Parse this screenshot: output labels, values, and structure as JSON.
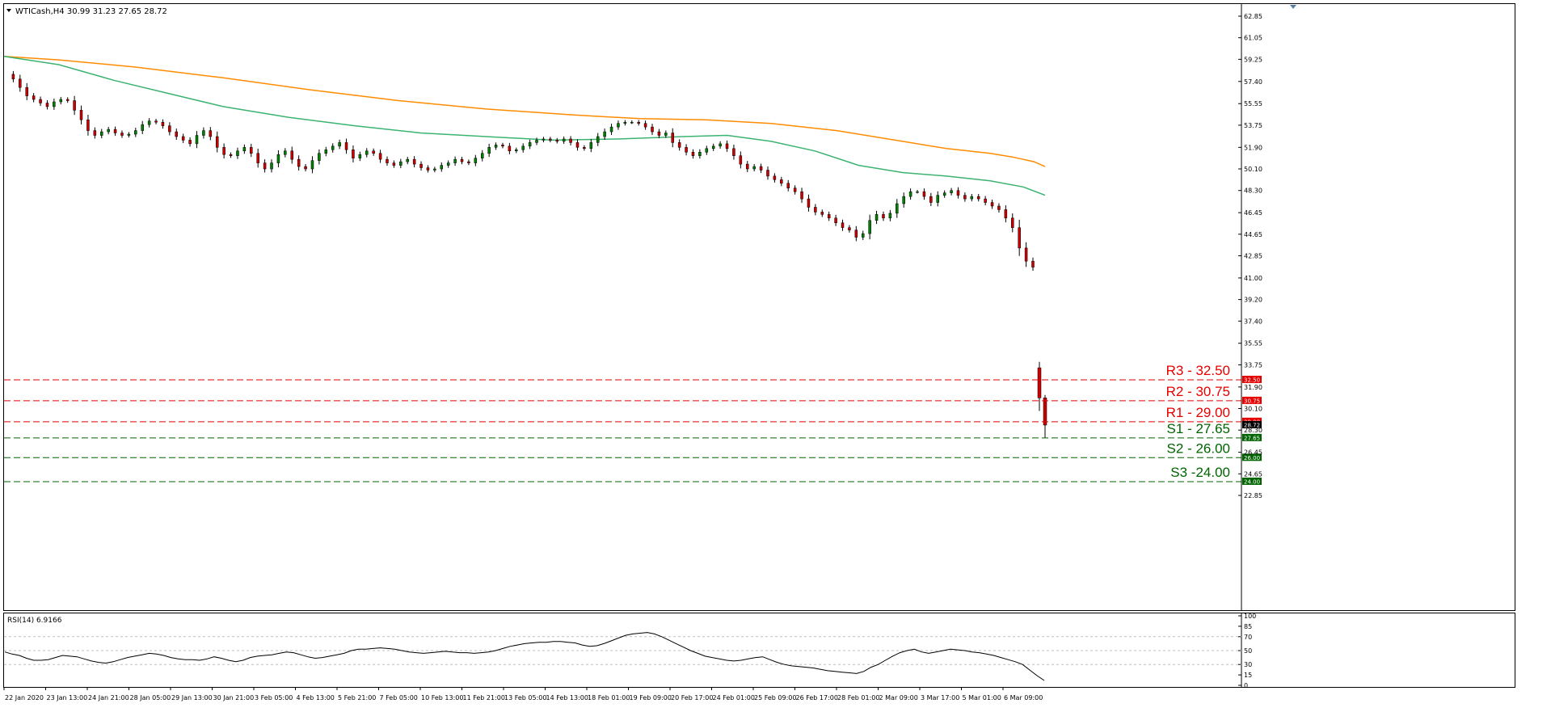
{
  "window": {
    "symbol_header": "WTICash,H4  30.99 31.23 27.65 28.72",
    "menu_arrow_icon": "triangle-down-icon",
    "scroll_marker_icon": "triangle-down-icon"
  },
  "colors": {
    "background": "#ffffff",
    "frame": "#000000",
    "bull_candle": "#008000",
    "bear_candle": "#cc0000",
    "wick": "#000000",
    "ma_slow": "#ff8c00",
    "ma_fast": "#3cb371",
    "resistance": "#e60000",
    "support": "#006400",
    "rsi_line": "#000000",
    "rsi_levels": "#bfbfbf"
  },
  "chart_data": [
    {
      "type": "candlestick",
      "title": "WTICash,H4  30.99 31.23 27.65 28.72",
      "last_bar": {
        "open": 30.99,
        "high": 31.23,
        "low": 27.65,
        "close": 28.72
      },
      "ylim": [
        22.85,
        63.75
      ],
      "y_ticks": [
        "62.85",
        "61.05",
        "59.25",
        "57.40",
        "55.55",
        "53.75",
        "51.90",
        "50.10",
        "48.30",
        "46.45",
        "44.65",
        "42.85",
        "41.00",
        "39.20",
        "37.40",
        "35.55",
        "33.75",
        "31.90",
        "30.10",
        "28.30",
        "26.45",
        "24.65",
        "22.85"
      ],
      "x_ticks": [
        "22 Jan 2020",
        "23 Jan 13:00",
        "24 Jan 21:00",
        "28 Jan 05:00",
        "29 Jan 13:00",
        "30 Jan 21:00",
        "3 Feb 05:00",
        "4 Feb 13:00",
        "5 Feb 21:00",
        "7 Feb 05:00",
        "10 Feb 13:00",
        "11 Feb 21:00",
        "13 Feb 05:00",
        "14 Feb 13:00",
        "18 Feb 01:00",
        "19 Feb 09:00",
        "20 Feb 17:00",
        "24 Feb 01:00",
        "25 Feb 09:00",
        "26 Feb 17:00",
        "28 Feb 01:00",
        "2 Mar 09:00",
        "3 Mar 17:00",
        "5 Mar 01:00",
        "6 Mar 09:00"
      ],
      "price_path": [
        58.0,
        57.6,
        56.9,
        56.2,
        55.9,
        55.6,
        55.3,
        55.7,
        55.9,
        55.8,
        55.0,
        54.2,
        53.3,
        52.9,
        53.2,
        53.4,
        53.1,
        52.9,
        53.0,
        53.3,
        53.8,
        54.1,
        54.0,
        53.7,
        53.2,
        52.8,
        52.5,
        52.2,
        52.9,
        53.3,
        52.8,
        51.9,
        51.3,
        51.2,
        51.6,
        51.9,
        51.4,
        50.6,
        50.1,
        50.6,
        51.3,
        51.6,
        50.9,
        50.3,
        50.1,
        50.8,
        51.4,
        51.7,
        52.0,
        52.3,
        51.7,
        51.0,
        51.3,
        51.6,
        51.4,
        50.9,
        50.6,
        50.4,
        50.7,
        50.9,
        50.5,
        50.2,
        50.0,
        50.1,
        50.4,
        50.6,
        50.9,
        50.7,
        50.6,
        51.0,
        51.4,
        51.9,
        52.1,
        52.0,
        51.6,
        51.7,
        52.0,
        52.3,
        52.5,
        52.6,
        52.5,
        52.4,
        52.6,
        52.3,
        51.9,
        51.8,
        52.3,
        52.8,
        53.2,
        53.6,
        53.9,
        54.0,
        54.0,
        53.9,
        53.6,
        53.2,
        52.9,
        53.1,
        52.3,
        51.9,
        51.5,
        51.2,
        51.5,
        51.8,
        52.0,
        52.2,
        51.8,
        51.2,
        50.5,
        50.1,
        50.3,
        50.0,
        49.5,
        49.2,
        48.9,
        48.5,
        48.2,
        47.6,
        46.9,
        46.5,
        46.3,
        46.0,
        45.6,
        45.2,
        45.0,
        44.4,
        44.7,
        45.8,
        46.3,
        46.0,
        46.4,
        47.2,
        47.8,
        48.2,
        48.2,
        47.8,
        47.3,
        47.9,
        48.1,
        48.3,
        47.9,
        47.6,
        47.8,
        47.6,
        47.3,
        47.0,
        46.7,
        46.0,
        45.2,
        43.5,
        42.4,
        41.9
      ],
      "gap_bars": [
        {
          "open": 33.5,
          "high": 34.0,
          "low": 29.9,
          "close": 30.99
        },
        {
          "open": 30.99,
          "high": 31.23,
          "low": 27.65,
          "close": 28.72
        }
      ],
      "ma_slow": [
        [
          0,
          59.5
        ],
        [
          0.05,
          59.2
        ],
        [
          0.12,
          58.6
        ],
        [
          0.2,
          57.7
        ],
        [
          0.28,
          56.7
        ],
        [
          0.36,
          55.8
        ],
        [
          0.44,
          55.1
        ],
        [
          0.52,
          54.6
        ],
        [
          0.58,
          54.3
        ],
        [
          0.64,
          54.2
        ],
        [
          0.7,
          53.9
        ],
        [
          0.76,
          53.3
        ],
        [
          0.82,
          52.4
        ],
        [
          0.86,
          51.8
        ],
        [
          0.9,
          51.4
        ],
        [
          0.92,
          51.1
        ],
        [
          0.94,
          50.7
        ],
        [
          0.95,
          50.3
        ]
      ],
      "ma_fast": [
        [
          0,
          59.5
        ],
        [
          0.05,
          58.8
        ],
        [
          0.1,
          57.5
        ],
        [
          0.15,
          56.4
        ],
        [
          0.2,
          55.3
        ],
        [
          0.26,
          54.4
        ],
        [
          0.32,
          53.7
        ],
        [
          0.38,
          53.1
        ],
        [
          0.44,
          52.8
        ],
        [
          0.5,
          52.5
        ],
        [
          0.56,
          52.6
        ],
        [
          0.62,
          52.8
        ],
        [
          0.66,
          52.9
        ],
        [
          0.7,
          52.4
        ],
        [
          0.74,
          51.6
        ],
        [
          0.78,
          50.4
        ],
        [
          0.82,
          49.8
        ],
        [
          0.86,
          49.5
        ],
        [
          0.9,
          49.1
        ],
        [
          0.93,
          48.6
        ],
        [
          0.95,
          47.9
        ]
      ],
      "levels": [
        {
          "label": "R3 - 32.50",
          "value": 32.5,
          "tag": "32.50",
          "kind": "resistance"
        },
        {
          "label": "R2 - 30.75",
          "value": 30.75,
          "tag": "30.75",
          "kind": "resistance"
        },
        {
          "label": "R1 - 29.00",
          "value": 29.0,
          "tag": "29.00",
          "kind": "resistance"
        },
        {
          "label": "S1 - 27.65",
          "value": 27.65,
          "tag": "27.65",
          "kind": "support"
        },
        {
          "label": "S2 - 26.00",
          "value": 26.0,
          "tag": "26.00",
          "kind": "support"
        },
        {
          "label": "S3 -24.00",
          "value": 24.0,
          "tag": "24.00",
          "kind": "support"
        }
      ],
      "current_price_tag": "28.72"
    },
    {
      "type": "line",
      "title": "RSI(14) 6.9166",
      "ylim": [
        0,
        100
      ],
      "y_ticks": [
        "100",
        "85",
        "70",
        "50",
        "30",
        "15",
        "0"
      ],
      "rsi_levels": [
        70,
        50,
        30
      ],
      "rsi_path": [
        48,
        45,
        43,
        39,
        36,
        36,
        37,
        40,
        43,
        42,
        41,
        38,
        35,
        33,
        32,
        34,
        37,
        40,
        42,
        44,
        46,
        45,
        43,
        40,
        38,
        37,
        37,
        36,
        38,
        41,
        39,
        36,
        34,
        36,
        40,
        42,
        43,
        44,
        46,
        48,
        47,
        44,
        41,
        39,
        40,
        42,
        44,
        46,
        50,
        52,
        52,
        53,
        54,
        53,
        52,
        50,
        48,
        47,
        46,
        47,
        48,
        49,
        48,
        47,
        47,
        46,
        47,
        48,
        50,
        53,
        56,
        58,
        60,
        61,
        62,
        62,
        63,
        63,
        62,
        61,
        58,
        56,
        57,
        60,
        64,
        68,
        72,
        74,
        75,
        76,
        74,
        70,
        65,
        60,
        55,
        50,
        46,
        42,
        40,
        38,
        36,
        35,
        36,
        38,
        40,
        41,
        37,
        33,
        30,
        28,
        27,
        26,
        25,
        23,
        21,
        20,
        19,
        18,
        17,
        20,
        26,
        30,
        36,
        42,
        47,
        50,
        52,
        48,
        46,
        48,
        50,
        52,
        51,
        50,
        48,
        47,
        45,
        43,
        40,
        37,
        34,
        30,
        22,
        14,
        7
      ]
    }
  ]
}
